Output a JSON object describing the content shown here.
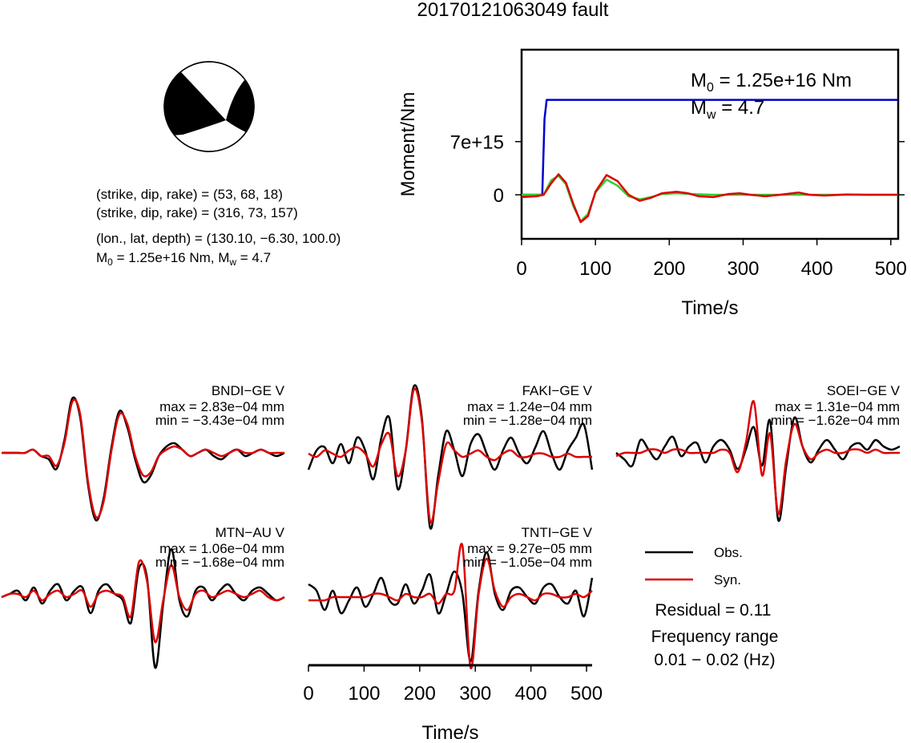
{
  "title": "20170121063049 fault",
  "beachball": {
    "lines": [
      "(strike, dip, rake) = (53, 68, 18)",
      "(strike, dip, rake) = (316, 73, 157)",
      "(lon., lat, depth) = (130.10, −6.30, 100.0)"
    ],
    "m0_text": "M",
    "m0_sub": "0",
    "m0_rest": " = 1.25e+16 Nm, M",
    "mw_sub": "w",
    "mw_rest": " = 4.7"
  },
  "chart_data": [
    {
      "type": "line",
      "name": "moment-rate",
      "ylabel": "Moment/Nm",
      "xlabel": "Time/s",
      "xlim": [
        0,
        510
      ],
      "ylim": [
        -5800000000000000.0,
        1.91e+16
      ],
      "xticks": [
        "0",
        "100",
        "200",
        "300",
        "400",
        "500"
      ],
      "yticks": [
        "0",
        "7e+15"
      ],
      "annotation": {
        "m0": "M",
        "m0_sub": "0",
        "m0_rest": " = 1.25e+16 Nm",
        "mw": "M",
        "mw_sub": "w",
        "mw_rest": " = 4.7"
      },
      "colors": {
        "blue": "#0000cc",
        "green": "#33cc33",
        "red": "#dd0000"
      },
      "series": [
        {
          "color": "blue",
          "x": [
            0,
            28,
            31,
            34,
            510
          ],
          "y": [
            0,
            0,
            1e+16,
            1.25e+16,
            1.25e+16
          ]
        },
        {
          "color": "green",
          "x": [
            0,
            30,
            40,
            50,
            60,
            70,
            80,
            90,
            100,
            115,
            130,
            145,
            160,
            175,
            190,
            210,
            230,
            260,
            300,
            350,
            400,
            510
          ],
          "y": [
            0,
            0,
            1900000000000000.0,
            2500000000000000.0,
            1400000000000000.0,
            -1500000000000000.0,
            -3500000000000000.0,
            -2500000000000000.0,
            300000000000000.0,
            2000000000000000.0,
            1200000000000000.0,
            -200000000000000.0,
            -600000000000000.0,
            -300000000000000.0,
            100000000000000.0,
            200000000000000.0,
            100000000000000.0,
            0,
            0,
            0,
            0,
            0
          ]
        },
        {
          "color": "red",
          "x": [
            0,
            20,
            30,
            40,
            50,
            60,
            70,
            80,
            90,
            100,
            115,
            130,
            145,
            160,
            175,
            190,
            210,
            225,
            240,
            260,
            280,
            295,
            310,
            330,
            350,
            375,
            390,
            410,
            440,
            470,
            510
          ],
          "y": [
            -300000000000000.0,
            -200000000000000.0,
            0,
            1500000000000000.0,
            2700000000000000.0,
            1600000000000000.0,
            -1200000000000000.0,
            -3600000000000000.0,
            -2800000000000000.0,
            400000000000000.0,
            2600000000000000.0,
            1800000000000000.0,
            0,
            -800000000000000.0,
            -400000000000000.0,
            200000000000000.0,
            400000000000000.0,
            200000000000000.0,
            -200000000000000.0,
            -300000000000000.0,
            100000000000000.0,
            200000000000000.0,
            0,
            -200000000000000.0,
            0,
            300000000000000.0,
            0,
            -100000000000000.0,
            50000000000000.0,
            0,
            0
          ]
        }
      ]
    },
    {
      "type": "line",
      "name": "waveforms",
      "xlabel": "Time/s",
      "xlim": [
        0,
        510
      ],
      "xticks": [
        "0",
        "100",
        "200",
        "300",
        "400",
        "500"
      ],
      "legend": {
        "obs": "Obs.",
        "syn": "Syn."
      },
      "residual": "Residual = 0.11",
      "freq_label": "Frequency range",
      "freq_range": "0.01 − 0.02 (Hz)",
      "stations": [
        {
          "name": "BNDI−GE V",
          "max": "max = 2.83e−04 mm",
          "min": "min = −3.43e−04 mm",
          "obs": [
            0,
            0,
            0,
            0,
            0.05,
            -0.05,
            -0.1,
            -0.25,
            0.2,
            0.85,
            0.55,
            -0.5,
            -1.05,
            -0.7,
            0.1,
            0.65,
            0.4,
            -0.1,
            -0.45,
            -0.35,
            -0.05,
            0.1,
            0.15,
            0.05,
            -0.05,
            0,
            0.05,
            -0.05,
            -0.1,
            0,
            0.05,
            -0.05,
            0,
            0.05,
            0,
            -0.05,
            0
          ],
          "syn": [
            0,
            0,
            0,
            0,
            0.05,
            -0.05,
            -0.05,
            -0.2,
            0.15,
            0.8,
            0.6,
            -0.45,
            -1.0,
            -0.75,
            0.05,
            0.6,
            0.45,
            -0.05,
            -0.35,
            -0.3,
            -0.05,
            0.05,
            0.1,
            0.05,
            -0.05,
            0,
            0.05,
            0,
            -0.05,
            0,
            0.05,
            0,
            0,
            0.05,
            0,
            0,
            0
          ]
        },
        {
          "name": "FAKI−GE V",
          "max": "max = 1.24e−04 mm",
          "min": "min = −1.28e−04 mm",
          "obs": [
            -0.2,
            0.1,
            0.15,
            -0.1,
            0.2,
            -0.1,
            0.3,
            0.1,
            -0.35,
            0.3,
            0.6,
            -0.5,
            0.1,
            1.1,
            0.6,
            -1.1,
            -0.3,
            0.4,
            0.1,
            -0.3,
            0.2,
            0.35,
            0.05,
            -0.2,
            0.1,
            0.3,
            0.05,
            -0.1,
            0.15,
            0.4,
            0.05,
            -0.2,
            0.1,
            0.3,
            0.5,
            -0.2
          ],
          "syn": [
            0.05,
            0.0,
            0.1,
            0.05,
            0.0,
            0.1,
            0.15,
            0.05,
            -0.15,
            0.2,
            0.35,
            -0.3,
            0.1,
            1.05,
            0.55,
            -1.0,
            -0.4,
            0.2,
            0.1,
            0.0,
            0.05,
            0.1,
            0.0,
            -0.05,
            0.05,
            0.1,
            0.0,
            0.0,
            0.05,
            0.05,
            0.0,
            0.0,
            0.05,
            0.0,
            0.0,
            0.0
          ]
        },
        {
          "name": "SOEI−GE V",
          "max": "max = 1.31e−04 mm",
          "min": "min = −1.62e−04 mm",
          "obs": [
            0,
            -0.1,
            -0.2,
            0.2,
            0.05,
            -0.1,
            0.1,
            0.25,
            -0.05,
            0.1,
            0.15,
            -0.15,
            0.1,
            0.2,
            0.05,
            -0.25,
            0.05,
            0.4,
            -0.2,
            0.5,
            -1.05,
            -0.2,
            0.55,
            0.1,
            -0.15,
            0.05,
            0.2,
            0.05,
            -0.1,
            0.1,
            0.15,
            0.05,
            0.2,
            0.1,
            0.05,
            0.1
          ],
          "syn": [
            -0.05,
            0,
            0,
            0,
            0.05,
            0.05,
            0,
            0.05,
            0.05,
            0,
            0,
            0,
            0,
            0.05,
            0,
            -0.3,
            0.15,
            0.8,
            -0.35,
            0.3,
            -0.95,
            -0.1,
            0.45,
            0.1,
            -0.1,
            0,
            0.05,
            0,
            0,
            0.05,
            0.05,
            0,
            0.05,
            0,
            0,
            0
          ]
        },
        {
          "name": "MTN−AU V",
          "max": "max = 1.06e−04 mm",
          "min": "min = −1.68e−04 mm",
          "obs": [
            0,
            0.05,
            0.1,
            -0.05,
            0.15,
            -0.1,
            0.1,
            0.2,
            -0.05,
            0.1,
            0.15,
            -0.25,
            0.1,
            0.2,
            0.05,
            -0.05,
            -0.4,
            0.45,
            0.3,
            -1.1,
            -0.1,
            0.75,
            -0.05,
            -0.3,
            0.1,
            0.15,
            -0.05,
            0.1,
            0.2,
            0.05,
            -0.05,
            0.1,
            0.15,
            0.05,
            -0.05,
            0
          ],
          "syn": [
            0,
            0.05,
            0.05,
            0,
            0.1,
            -0.05,
            0.05,
            0.1,
            0,
            0.05,
            0.1,
            -0.15,
            0.05,
            0.1,
            0.05,
            0,
            -0.3,
            0.55,
            0.25,
            -0.7,
            -0.05,
            0.5,
            0,
            -0.2,
            0.05,
            0.1,
            0,
            0.05,
            0.1,
            0.05,
            0,
            0.05,
            0.1,
            0,
            -0.05,
            0
          ]
        },
        {
          "name": "TNTI−GE V",
          "max": "max = 9.27e−05 mm",
          "min": "min = −1.05e−04 mm",
          "obs": [
            0.2,
            0.1,
            -0.2,
            0.1,
            -0.25,
            -0.05,
            0.15,
            -0.15,
            0.05,
            0.3,
            -0.05,
            -0.1,
            0.2,
            -0.1,
            0.1,
            0.35,
            -0.25,
            0.05,
            0.4,
            0.05,
            -1.0,
            0.1,
            0.7,
            0.05,
            -0.2,
            0.1,
            0.15,
            0,
            -0.1,
            0.15,
            0.2,
            0,
            -0.1,
            0.1,
            -0.3,
            0.3
          ],
          "syn": [
            -0.05,
            -0.05,
            -0.05,
            0,
            0,
            0,
            0,
            0,
            0.05,
            0.05,
            0,
            -0.05,
            0.05,
            0,
            0,
            0.05,
            -0.1,
            0.05,
            0.1,
            0.8,
            -1.1,
            0.05,
            0.6,
            0.1,
            -0.15,
            0,
            0.05,
            0,
            -0.05,
            0.05,
            0.05,
            0,
            0,
            0.05,
            0,
            0.1
          ]
        }
      ]
    }
  ]
}
